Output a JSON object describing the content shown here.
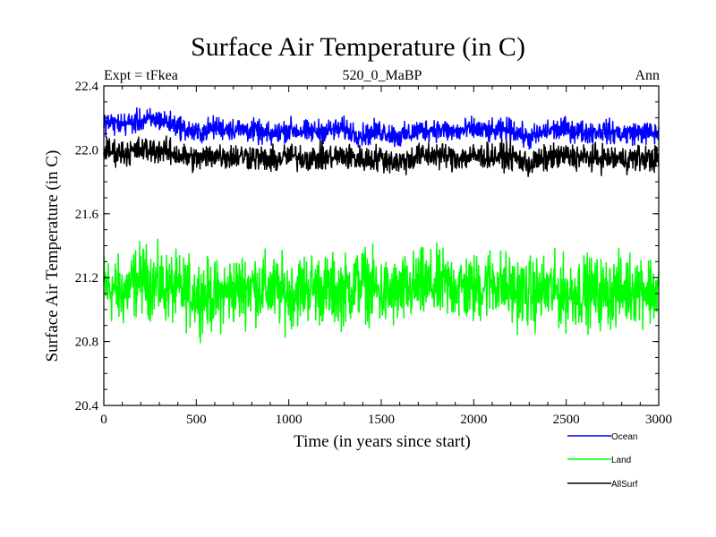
{
  "chart_data": {
    "type": "line",
    "title": "Surface Air Temperature (in C)",
    "subtitle_left": "Expt = tFkea",
    "subtitle_center": "520_0_MaBP",
    "subtitle_right": "Ann",
    "xlabel": "Time (in years since start)",
    "ylabel": "Surface Air Temperature (in C)",
    "xlim": [
      0,
      3000
    ],
    "ylim": [
      20.4,
      22.4
    ],
    "xticks": [
      0,
      500,
      1000,
      1500,
      2000,
      2500,
      3000
    ],
    "yticks": [
      "20.4",
      "20.8",
      "21.2",
      "21.6",
      "22.0",
      "22.4"
    ],
    "x": [
      0,
      100,
      200,
      300,
      400,
      500,
      600,
      700,
      800,
      900,
      1000,
      1100,
      1200,
      1300,
      1400,
      1500,
      1600,
      1700,
      1800,
      1900,
      2000,
      2100,
      2200,
      2300,
      2400,
      2500,
      2600,
      2700,
      2800,
      2900,
      3000
    ],
    "series": [
      {
        "name": "Ocean",
        "color": "#0000ff",
        "values": [
          22.17,
          22.16,
          22.18,
          22.19,
          22.15,
          22.1,
          22.14,
          22.13,
          22.12,
          22.09,
          22.13,
          22.11,
          22.12,
          22.13,
          22.09,
          22.12,
          22.08,
          22.12,
          22.13,
          22.11,
          22.13,
          22.11,
          22.13,
          22.07,
          22.12,
          22.13,
          22.11,
          22.12,
          22.1,
          22.11,
          22.1
        ]
      },
      {
        "name": "Land",
        "color": "#00ff00",
        "values": [
          21.15,
          21.1,
          21.2,
          21.15,
          21.12,
          21.1,
          21.08,
          21.12,
          21.15,
          21.12,
          21.1,
          21.15,
          21.12,
          21.12,
          21.18,
          21.1,
          21.1,
          21.15,
          21.15,
          21.15,
          21.12,
          21.18,
          21.12,
          21.1,
          21.12,
          21.1,
          21.12,
          21.1,
          21.12,
          21.15,
          21.1
        ]
      },
      {
        "name": "AllSurf",
        "color": "#000000",
        "values": [
          22.0,
          21.98,
          22.0,
          22.0,
          21.97,
          21.94,
          21.97,
          21.96,
          21.96,
          21.93,
          21.96,
          21.95,
          21.95,
          21.96,
          21.94,
          21.95,
          21.92,
          21.96,
          21.97,
          21.95,
          21.96,
          21.96,
          21.96,
          21.91,
          21.95,
          21.96,
          21.95,
          21.95,
          21.94,
          21.95,
          21.94
        ]
      }
    ],
    "legend_position": "bottom-right"
  }
}
